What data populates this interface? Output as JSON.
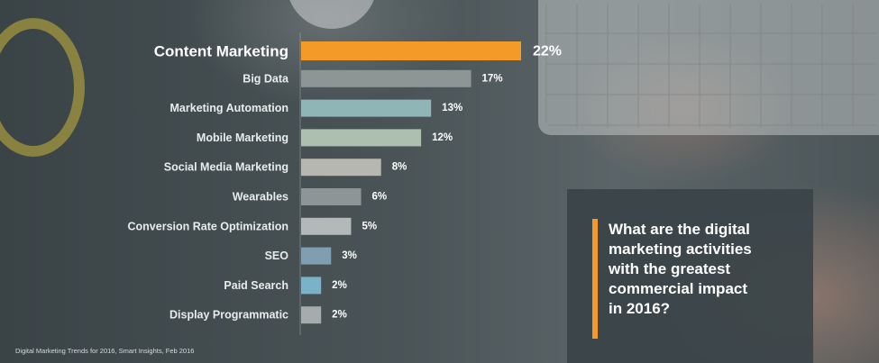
{
  "chart_data": {
    "type": "bar",
    "orientation": "horizontal",
    "categories": [
      "Content Marketing",
      "Big Data",
      "Marketing Automation",
      "Mobile Marketing",
      "Social Media Marketing",
      "Wearables",
      "Conversion Rate Optimization",
      "SEO",
      "Paid Search",
      "Display Programmatic"
    ],
    "values": [
      22,
      17,
      13,
      12,
      8,
      6,
      5,
      3,
      2,
      2
    ],
    "value_labels": [
      "22%",
      "17%",
      "13%",
      "12%",
      "8%",
      "6%",
      "5%",
      "3%",
      "2%",
      "2%"
    ],
    "highlight_index": 0,
    "bar_colors": [
      "#f49a29",
      "#8e9595",
      "#8fb5b6",
      "#adbfae",
      "#b6b8b0",
      "#8e9596",
      "#b3b9b9",
      "#7f9eb1",
      "#7ab3c9",
      "#a6acac"
    ],
    "unit": "%",
    "xlim": [
      0,
      22
    ],
    "grid": false,
    "legend": "none"
  },
  "panel": {
    "question": "What are the digital\nmarketing activities\nwith the greatest\ncommercial impact\nin 2016?",
    "accent_color": "#f49a29"
  },
  "source": "Digital Marketing Trends  for 2016, Smart Insights, Feb 2016"
}
